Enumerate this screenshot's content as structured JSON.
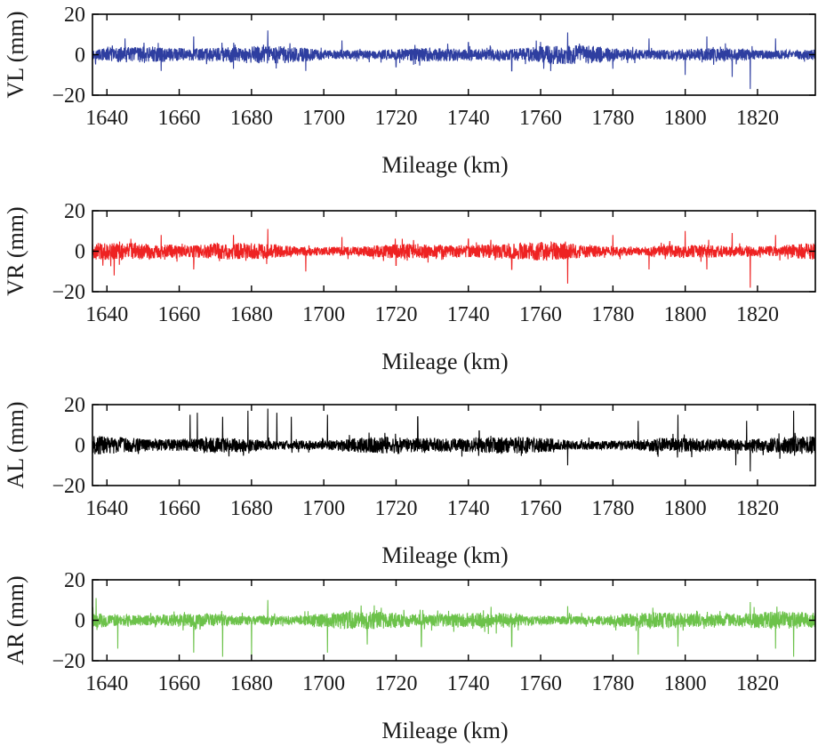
{
  "figure": {
    "xlabel": "Mileage (km)"
  },
  "chart_data": [
    {
      "type": "line",
      "ylabel": "VL (mm)",
      "xlabel": "Mileage (km)",
      "color": "#2e3ea0",
      "xlim": [
        1636,
        1836
      ],
      "ylim": [
        -20,
        20
      ],
      "xticks": [
        1640,
        1660,
        1680,
        1700,
        1720,
        1740,
        1760,
        1780,
        1800,
        1820
      ],
      "yticks": [
        20,
        0,
        -20
      ],
      "series": [
        {
          "values_summary": "dense track irregularity signal",
          "x": [
            1636,
            1645,
            1655,
            1664,
            1675,
            1684.5,
            1695,
            1705,
            1720,
            1740,
            1752,
            1767.5,
            1780,
            1790,
            1800,
            1806,
            1813,
            1818,
            1825,
            1836
          ],
          "y": [
            0,
            8,
            -8,
            9,
            -7,
            12,
            -8,
            7,
            -6,
            6,
            -8,
            11,
            -7,
            8,
            -10,
            9,
            -11,
            -17,
            8,
            0
          ]
        }
      ]
    },
    {
      "type": "line",
      "ylabel": "VR (mm)",
      "xlabel": "Mileage (km)",
      "color": "#ee2222",
      "xlim": [
        1636,
        1836
      ],
      "ylim": [
        -20,
        20
      ],
      "xticks": [
        1640,
        1660,
        1680,
        1700,
        1720,
        1740,
        1760,
        1780,
        1800,
        1820
      ],
      "yticks": [
        20,
        0,
        -20
      ],
      "series": [
        {
          "values_summary": "dense track irregularity signal",
          "x": [
            1636,
            1642,
            1655,
            1664,
            1675,
            1684.5,
            1695,
            1705,
            1720,
            1740,
            1752,
            1767.5,
            1780,
            1790,
            1800,
            1806,
            1813,
            1818,
            1825,
            1836
          ],
          "y": [
            0,
            -12,
            8,
            -9,
            8,
            11,
            -10,
            7,
            -7,
            6,
            -9,
            -16,
            8,
            -9,
            10,
            -9,
            9,
            -18,
            8,
            0
          ]
        }
      ]
    },
    {
      "type": "line",
      "ylabel": "AL (mm)",
      "xlabel": "Mileage (km)",
      "color": "#000000",
      "xlim": [
        1636,
        1836
      ],
      "ylim": [
        -20,
        20
      ],
      "xticks": [
        1640,
        1660,
        1680,
        1700,
        1720,
        1740,
        1760,
        1780,
        1800,
        1820
      ],
      "yticks": [
        20,
        0,
        -20
      ],
      "series": [
        {
          "values_summary": "dense track irregularity signal with spikes",
          "x": [
            1636,
            1663,
            1665,
            1672,
            1679,
            1684.5,
            1687,
            1691,
            1701,
            1726,
            1743,
            1767.5,
            1787,
            1798,
            1814,
            1817,
            1818,
            1830,
            1836
          ],
          "y": [
            0,
            15,
            16,
            14,
            17,
            18,
            16,
            14,
            15,
            14,
            7,
            -10,
            12,
            15,
            -10,
            12,
            -13,
            17,
            0
          ]
        }
      ]
    },
    {
      "type": "line",
      "ylabel": "AR (mm)",
      "xlabel": "Mileage (km)",
      "color": "#6cc24a",
      "xlim": [
        1636,
        1836
      ],
      "ylim": [
        -20,
        20
      ],
      "xticks": [
        1640,
        1660,
        1680,
        1700,
        1720,
        1740,
        1760,
        1780,
        1800,
        1820
      ],
      "yticks": [
        20,
        0,
        -20
      ],
      "series": [
        {
          "values_summary": "dense track irregularity signal with downward spikes",
          "x": [
            1636,
            1637,
            1643,
            1664,
            1672,
            1680,
            1684.5,
            1701,
            1712,
            1727,
            1752,
            1767.5,
            1787,
            1798,
            1818,
            1825,
            1830,
            1836
          ],
          "y": [
            0,
            11,
            -14,
            -16,
            -18,
            -18,
            10,
            -16,
            -12,
            -13,
            -13,
            7,
            -17,
            -13,
            9,
            -14,
            -18,
            0
          ]
        }
      ]
    }
  ]
}
